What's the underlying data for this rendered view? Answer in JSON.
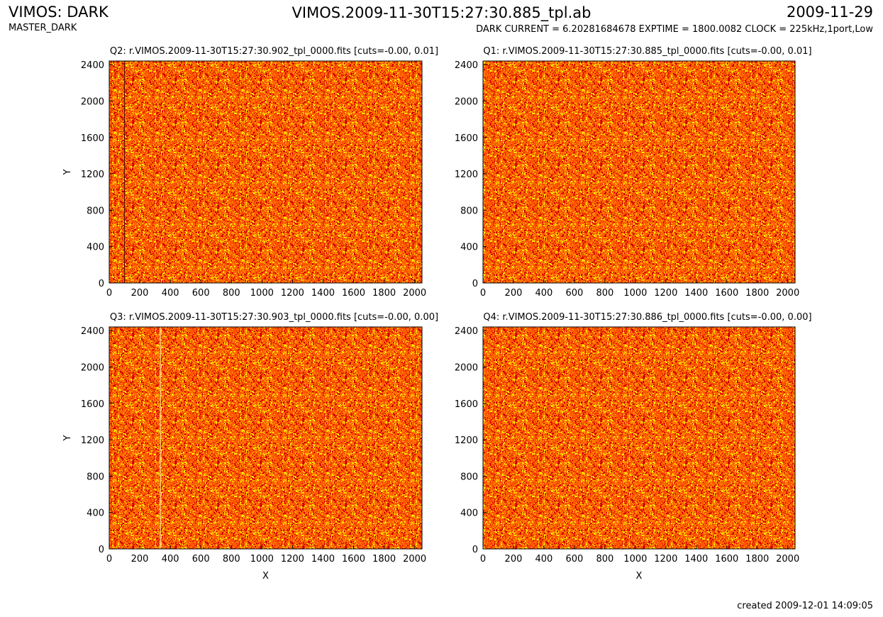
{
  "header": {
    "instrument": "VIMOS: DARK",
    "product": "MASTER_DARK",
    "file": "VIMOS.2009-11-30T15:27:30.885_tpl.ab",
    "date": "2009-11-29",
    "info": "DARK CURRENT = 6.20281684678 EXPTIME = 1800.0082 CLOCK = 225kHz,1port,Low"
  },
  "footer": {
    "created": "created 2009-12-01 14:09:05"
  },
  "colors": {
    "dark": "#cc0000",
    "mid": "#ff5500",
    "hot": "#ff9a00",
    "bright": "#ffee00"
  },
  "chart_data": [
    {
      "type": "heatmap",
      "title": "Q2: r.VIMOS.2009-11-30T15:27:30.902_tpl_0000.fits [cuts=-0.00, 0.01]",
      "xlabel": "",
      "ylabel": "Y",
      "xlim": [
        0,
        2048
      ],
      "ylim": [
        0,
        2440
      ],
      "xticks": [
        0,
        200,
        400,
        600,
        800,
        1000,
        1200,
        1400,
        1600,
        1800,
        2000
      ],
      "yticks": [
        0,
        400,
        800,
        1200,
        1600,
        2000,
        2400
      ],
      "features": [
        {
          "kind": "dark-column",
          "x": 100
        }
      ]
    },
    {
      "type": "heatmap",
      "title": "Q1: r.VIMOS.2009-11-30T15:27:30.885_tpl_0000.fits [cuts=-0.00, 0.01]",
      "xlabel": "",
      "ylabel": "",
      "xlim": [
        0,
        2048
      ],
      "ylim": [
        0,
        2440
      ],
      "xticks": [
        0,
        200,
        400,
        600,
        800,
        1000,
        1200,
        1400,
        1600,
        1800,
        2000
      ],
      "yticks": [
        0,
        400,
        800,
        1200,
        1600,
        2000,
        2400
      ],
      "features": []
    },
    {
      "type": "heatmap",
      "title": "Q3: r.VIMOS.2009-11-30T15:27:30.903_tpl_0000.fits [cuts=-0.00, 0.00]",
      "xlabel": "X",
      "ylabel": "Y",
      "xlim": [
        0,
        2048
      ],
      "ylim": [
        0,
        2440
      ],
      "xticks": [
        0,
        200,
        400,
        600,
        800,
        1000,
        1200,
        1400,
        1600,
        1800,
        2000
      ],
      "yticks": [
        0,
        400,
        800,
        1200,
        1600,
        2000,
        2400
      ],
      "features": [
        {
          "kind": "bright-column",
          "x": 335
        }
      ]
    },
    {
      "type": "heatmap",
      "title": "Q4: r.VIMOS.2009-11-30T15:27:30.886_tpl_0000.fits [cuts=-0.00, 0.00]",
      "xlabel": "X",
      "ylabel": "",
      "xlim": [
        0,
        2048
      ],
      "ylim": [
        0,
        2440
      ],
      "xticks": [
        0,
        200,
        400,
        600,
        800,
        1000,
        1200,
        1400,
        1600,
        1800,
        2000
      ],
      "yticks": [
        0,
        400,
        800,
        1200,
        1600,
        2000,
        2400
      ],
      "features": []
    }
  ]
}
